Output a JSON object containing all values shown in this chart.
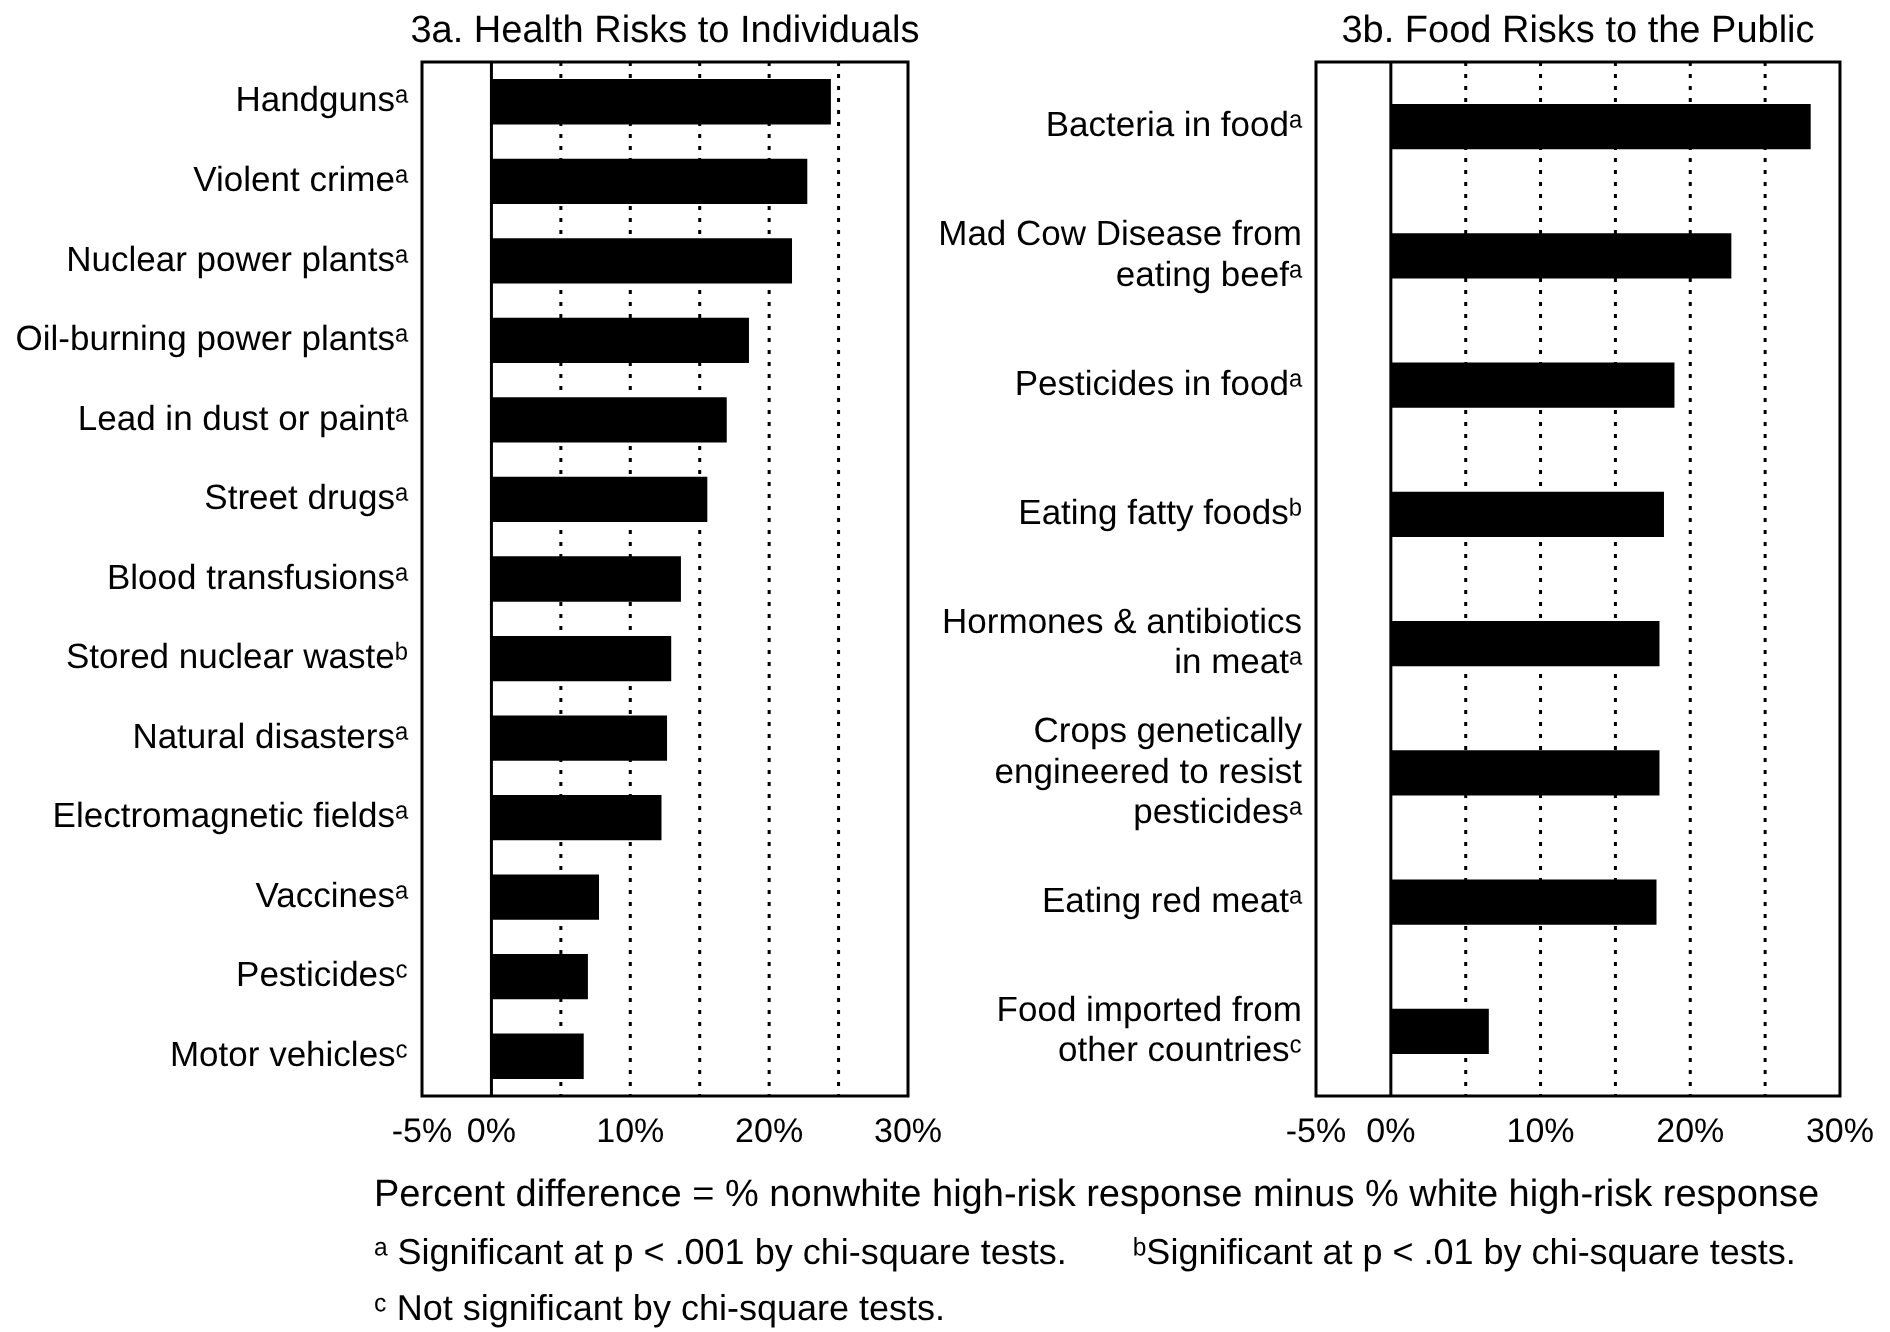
{
  "chart_data": [
    {
      "type": "bar",
      "orientation": "horizontal",
      "title": "3a. Health Risks to Individuals",
      "categories": [
        "Handgunsᵃ",
        "Violent crimeᵃ",
        "Nuclear power plantsᵃ",
        "Oil-burning power plantsᵃ",
        "Lead in dust or paintᵃ",
        "Street drugsᵃ",
        "Blood transfusionsᵃ",
        "Stored nuclear wasteᵇ",
        "Natural disastersᵃ",
        "Electromagnetic fieldsᵃ",
        "Vaccinesᵃ",
        "Pesticidesᶜ",
        "Motor vehiclesᶜ"
      ],
      "values": [
        24.4,
        22.7,
        21.6,
        18.5,
        16.9,
        15.5,
        13.6,
        12.9,
        12.6,
        12.2,
        7.7,
        6.9,
        6.6
      ],
      "color": "#000000",
      "xlim": [
        -5,
        30
      ],
      "xticks": [
        {
          "value": -5,
          "label": "-5%"
        },
        {
          "value": 0,
          "label": "0%"
        },
        {
          "value": 5,
          "label": null
        },
        {
          "value": 10,
          "label": "10%"
        },
        {
          "value": 15,
          "label": null
        },
        {
          "value": 20,
          "label": "20%"
        },
        {
          "value": 25,
          "label": null
        },
        {
          "value": 30,
          "label": "30%"
        }
      ],
      "grid": "x",
      "xlabel": "Percent difference = % nonwhite high-risk response minus % white high-risk response",
      "annotations": [
        "ᵃ Significant at p < .001 by chi-square tests.",
        "ᵇSignificant at p < .01 by chi-square tests.",
        "ᶜ Not significant by chi-square tests."
      ]
    },
    {
      "type": "bar",
      "orientation": "horizontal",
      "title": "3b. Food Risks to the Public",
      "categories": [
        "Bacteria in foodᵃ",
        "Mad Cow Disease from\neating beefᵃ",
        "Pesticides in foodᵃ",
        "Eating fatty foodsᵇ",
        "Hormones & antibiotics\nin meatᵃ",
        "Crops genetically\nengineered to resist\npesticidesᵃ",
        "Eating red meatᵃ",
        "Food imported from\nother countriesᶜ"
      ],
      "values": [
        28.0,
        22.7,
        18.9,
        18.2,
        17.9,
        17.9,
        17.7,
        6.5
      ],
      "color": "#000000",
      "xlim": [
        -5,
        30
      ],
      "xticks": [
        {
          "value": -5,
          "label": "-5%"
        },
        {
          "value": 0,
          "label": "0%"
        },
        {
          "value": 5,
          "label": null
        },
        {
          "value": 10,
          "label": "10%"
        },
        {
          "value": 15,
          "label": null
        },
        {
          "value": 20,
          "label": "20%"
        },
        {
          "value": 25,
          "label": null
        },
        {
          "value": 30,
          "label": "30%"
        }
      ],
      "grid": "x"
    }
  ]
}
